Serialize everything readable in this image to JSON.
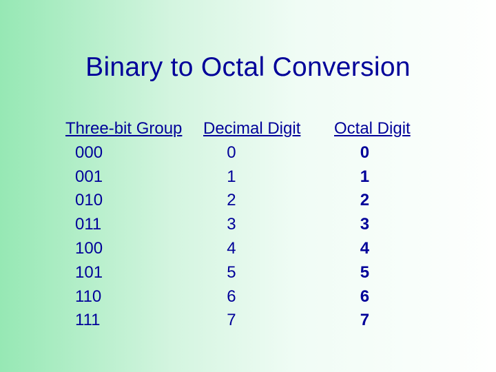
{
  "title": "Binary to Octal Conversion",
  "table": {
    "headers": {
      "col1": "Three-bit Group",
      "col2": "Decimal Digit",
      "col3": "Octal Digit"
    },
    "rows": [
      {
        "binary": "000",
        "decimal": "0",
        "octal": "0"
      },
      {
        "binary": "001",
        "decimal": "1",
        "octal": "1"
      },
      {
        "binary": "010",
        "decimal": "2",
        "octal": "2"
      },
      {
        "binary": "011",
        "decimal": "3",
        "octal": "3"
      },
      {
        "binary": "100",
        "decimal": "4",
        "octal": "4"
      },
      {
        "binary": "101",
        "decimal": "5",
        "octal": "5"
      },
      {
        "binary": "110",
        "decimal": "6",
        "octal": "6"
      },
      {
        "binary": "111",
        "decimal": "7",
        "octal": "7"
      }
    ]
  },
  "colors": {
    "text": "#000099",
    "bg_left": "#96e8b4",
    "bg_right": "#fefffe"
  },
  "typography": {
    "title_fontsize": 39,
    "body_fontsize": 24,
    "font_family": "Verdana"
  }
}
